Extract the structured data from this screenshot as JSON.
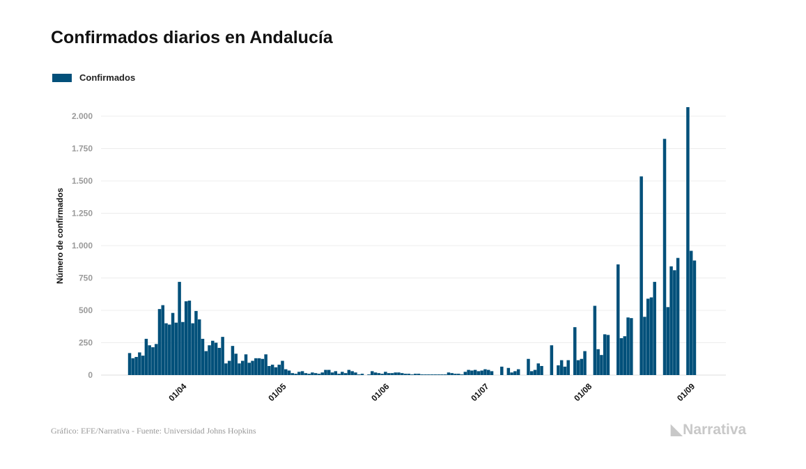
{
  "chart_data": {
    "type": "bar",
    "title": "Confirmados diarios en Andalucía",
    "ylabel": "Número de confirmados",
    "xlabel": "",
    "ylim": [
      0,
      2000
    ],
    "yticks": [
      0,
      250,
      500,
      750,
      1000,
      1250,
      1500,
      1750,
      2000
    ],
    "ytick_labels": [
      "0",
      "250",
      "500",
      "750",
      "1.000",
      "1.250",
      "1.500",
      "1.750",
      "2.000"
    ],
    "grid": true,
    "legend": {
      "position": "top-left",
      "entries": [
        "Confirmados"
      ]
    },
    "start_date": "2020-03-16",
    "xtick_labels": [
      {
        "label": "01/04",
        "day_index": 16
      },
      {
        "label": "01/05",
        "day_index": 46
      },
      {
        "label": "01/06",
        "day_index": 77
      },
      {
        "label": "01/07",
        "day_index": 107
      },
      {
        "label": "01/08",
        "day_index": 138
      },
      {
        "label": "01/09",
        "day_index": 169
      }
    ],
    "series": [
      {
        "name": "Confirmados",
        "color": "#02507a",
        "values": [
          170,
          130,
          140,
          175,
          150,
          280,
          230,
          215,
          240,
          510,
          540,
          400,
          390,
          480,
          405,
          720,
          410,
          570,
          575,
          400,
          495,
          430,
          280,
          185,
          230,
          265,
          250,
          210,
          295,
          90,
          110,
          225,
          165,
          90,
          110,
          160,
          95,
          110,
          130,
          130,
          125,
          160,
          70,
          80,
          60,
          80,
          110,
          45,
          35,
          15,
          10,
          25,
          30,
          15,
          10,
          20,
          15,
          10,
          20,
          40,
          40,
          20,
          30,
          10,
          25,
          15,
          40,
          30,
          20,
          5,
          10,
          0,
          5,
          30,
          20,
          15,
          10,
          25,
          15,
          15,
          20,
          20,
          15,
          10,
          10,
          5,
          10,
          10,
          5,
          5,
          5,
          5,
          5,
          5,
          5,
          5,
          20,
          15,
          10,
          10,
          5,
          25,
          40,
          35,
          40,
          30,
          35,
          45,
          40,
          30,
          0,
          0,
          65,
          0,
          55,
          20,
          30,
          45,
          0,
          0,
          125,
          30,
          40,
          90,
          70,
          0,
          0,
          230,
          0,
          75,
          115,
          65,
          115,
          0,
          370,
          115,
          125,
          185,
          0,
          0,
          535,
          200,
          155,
          315,
          310,
          0,
          0,
          855,
          285,
          300,
          445,
          440,
          0,
          0,
          1535,
          450,
          590,
          600,
          720,
          0,
          0,
          1825,
          525,
          840,
          810,
          905,
          0,
          0,
          2070,
          960,
          885
        ]
      }
    ]
  },
  "footer": {
    "source": "Gráfico: EFE/Narrativa - Fuente: Universidad Johns Hopkins",
    "logo": "Narrativa"
  }
}
